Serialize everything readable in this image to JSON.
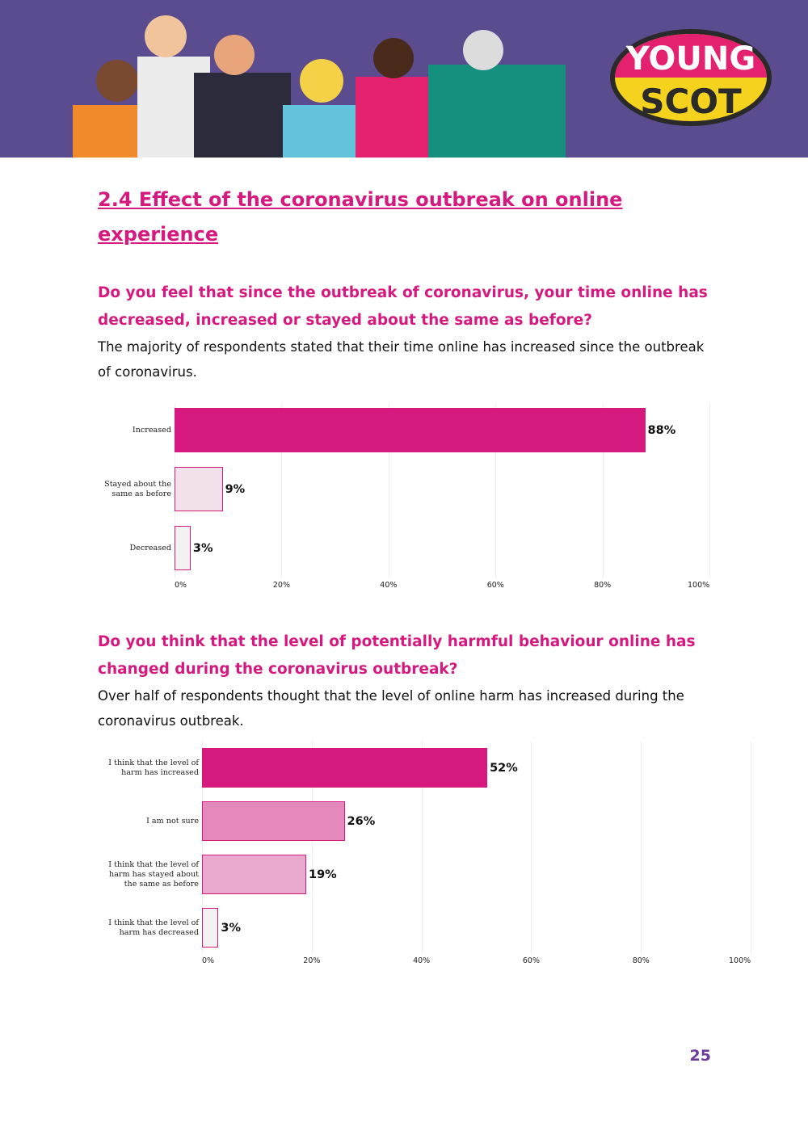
{
  "logo": {
    "line1": "YOUNG",
    "line2": "SCOT"
  },
  "section_title": "2.4 Effect of the coronavirus outbreak on online experience",
  "question_1": "Do you feel that since the outbreak of coronavirus, your time online has decreased, increased or stayed about the same as before?",
  "text_1": "The majority of respondents stated that their time online has increased since the outbreak of coronavirus.",
  "question_2": "Do you think that the level of potentially harmful behaviour online has changed during the coronavirus outbreak?",
  "text_2": "Over half of respondents thought that the level of online harm has increased during the coronavirus outbreak.",
  "page_number": "25",
  "chart_data": [
    {
      "type": "barh",
      "categories": [
        "Increased",
        "Stayed about the same as before",
        "Decreased"
      ],
      "values": [
        88,
        9,
        3
      ],
      "value_labels": [
        "88%",
        "9%",
        "3%"
      ],
      "colors": [
        "#d6197e",
        "#f2e1eb",
        "#f2f2f2"
      ],
      "xlim": [
        0,
        100
      ],
      "xticks": [
        {
          "value": 0,
          "label": "0%"
        },
        {
          "value": 20,
          "label": "20%"
        },
        {
          "value": 40,
          "label": "40%"
        },
        {
          "value": 60,
          "label": "60%"
        },
        {
          "value": 80,
          "label": "80%"
        },
        {
          "value": 100,
          "label": "100%"
        }
      ],
      "grid": true
    },
    {
      "type": "barh",
      "categories": [
        "I think that the level of harm has increased",
        "I am not sure",
        "I think that the level of harm has stayed about the same as before",
        "I think that the level of harm has decreased"
      ],
      "values": [
        52,
        26,
        19,
        3
      ],
      "value_labels": [
        "52%",
        "26%",
        "19%",
        "3%"
      ],
      "colors": [
        "#d6197e",
        "#e589bd",
        "#e9a8cd",
        "#f2f2f2"
      ],
      "xlim": [
        0,
        100
      ],
      "xticks": [
        {
          "value": 0,
          "label": "0%"
        },
        {
          "value": 20,
          "label": "20%"
        },
        {
          "value": 40,
          "label": "40%"
        },
        {
          "value": 60,
          "label": "60%"
        },
        {
          "value": 80,
          "label": "80%"
        },
        {
          "value": 100,
          "label": "100%"
        }
      ],
      "grid": true
    }
  ]
}
